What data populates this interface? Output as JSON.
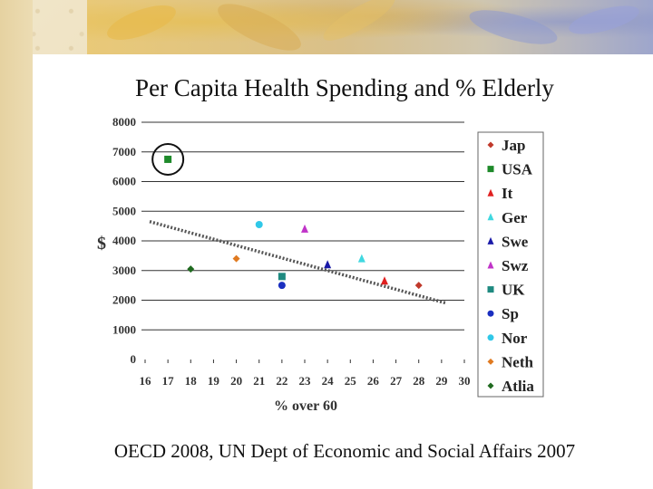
{
  "slide": {
    "title": "Per Capita Health Spending and % Elderly",
    "footer": "OECD 2008, UN Dept of Economic and Social Affairs 2007"
  },
  "colors": {
    "gridline": "#333333",
    "trendline": "#555555",
    "highlight_circle": "#111111"
  },
  "chart_data": {
    "type": "scatter",
    "xlabel": "% over 60",
    "ylabel": "$",
    "xlim": [
      16,
      30
    ],
    "ylim": [
      0,
      8000
    ],
    "x_ticks": [
      "16",
      "17",
      "18",
      "19",
      "20",
      "21",
      "22",
      "23",
      "24",
      "25",
      "26",
      "27",
      "28",
      "29",
      "30"
    ],
    "y_ticks": [
      "0",
      "1000",
      "2000",
      "3000",
      "4000",
      "5000",
      "6000",
      "7000",
      "8000"
    ],
    "grid": "horizontal",
    "legend_position": "right",
    "series": [
      {
        "name": "Jap",
        "color": "#c0392b",
        "marker": "diamond",
        "x": 28.0,
        "y": 2500
      },
      {
        "name": "USA",
        "color": "#1e8a2a",
        "marker": "square",
        "x": 17.0,
        "y": 6750
      },
      {
        "name": "It",
        "color": "#e02020",
        "marker": "triangle",
        "x": 26.5,
        "y": 2650
      },
      {
        "name": "Ger",
        "color": "#40d8e0",
        "marker": "triangle",
        "x": 25.5,
        "y": 3400
      },
      {
        "name": "Swe",
        "color": "#1a1aa8",
        "marker": "triangle",
        "x": 24.0,
        "y": 3200
      },
      {
        "name": "Swz",
        "color": "#c033c8",
        "marker": "triangle",
        "x": 23.0,
        "y": 4400
      },
      {
        "name": "UK",
        "color": "#1f8a80",
        "marker": "square",
        "x": 22.0,
        "y": 2800
      },
      {
        "name": "Sp",
        "color": "#1a2fc0",
        "marker": "circle",
        "x": 22.0,
        "y": 2500
      },
      {
        "name": "Nor",
        "color": "#30c8e8",
        "marker": "circle",
        "x": 21.0,
        "y": 4550
      },
      {
        "name": "Neth",
        "color": "#e07a20",
        "marker": "diamond",
        "x": 20.0,
        "y": 3400
      },
      {
        "name": "Atlia",
        "color": "#1f6a1f",
        "marker": "diamond",
        "x": 18.0,
        "y": 3050
      }
    ],
    "trendline": {
      "x": [
        16.2,
        29.2
      ],
      "y": [
        4650,
        1900
      ]
    },
    "highlight": {
      "x": 17.0,
      "y": 6750,
      "label": "USA"
    }
  }
}
